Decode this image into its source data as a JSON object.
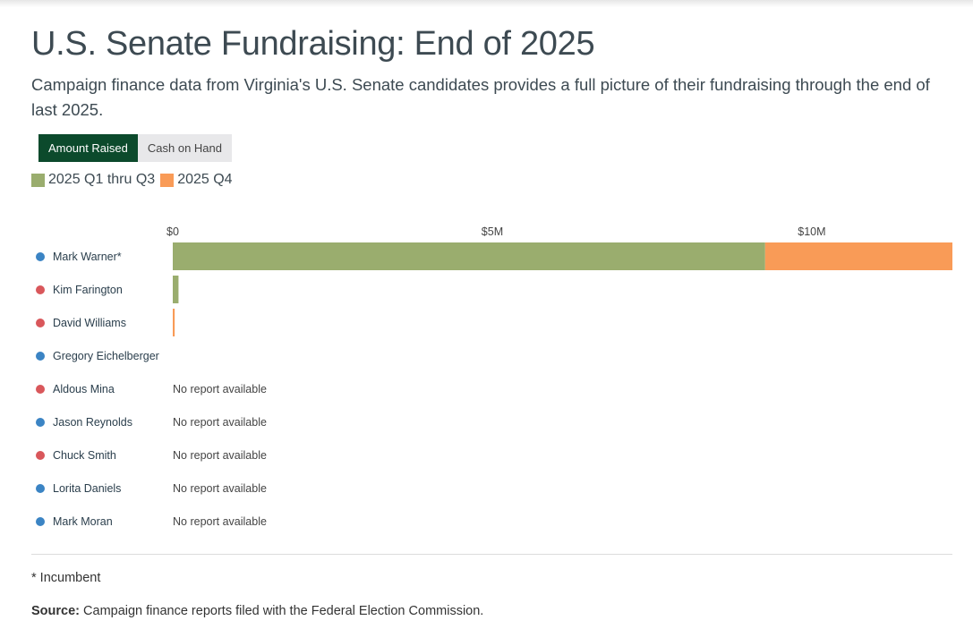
{
  "title": "U.S. Senate Fundraising: End of 2025",
  "subtitle": "Campaign finance data from Virginia's U.S. Senate candidates provides a full picture of their fundraising through the end of last 2025.",
  "toggle": {
    "active_label": "Amount Raised",
    "inactive_label": "Cash on Hand"
  },
  "legend": [
    {
      "label": "2025 Q1 thru Q3",
      "color": "#9aad6e"
    },
    {
      "label": "2025 Q4",
      "color": "#f99b57"
    }
  ],
  "party_colors": {
    "D": "#3b84c4",
    "R": "#d9575b"
  },
  "chart_data": {
    "type": "bar",
    "orientation": "horizontal",
    "stacked": true,
    "categories": [
      "Mark Warner*",
      "Kim Farington",
      "David Williams",
      "Gregory Eichelberger",
      "Aldous Mina",
      "Jason Reynolds",
      "Chuck Smith",
      "Lorita Daniels",
      "Mark Moran"
    ],
    "party": [
      "D",
      "R",
      "R",
      "D",
      "R",
      "D",
      "R",
      "D",
      "D"
    ],
    "series": [
      {
        "name": "2025 Q1 thru Q3",
        "values": [
          9270000,
          90000,
          0,
          0,
          null,
          null,
          null,
          null,
          null
        ]
      },
      {
        "name": "2025 Q4",
        "values": [
          2930000,
          0,
          30000,
          0,
          null,
          null,
          null,
          null,
          null
        ]
      }
    ],
    "no_report_label": "No report available",
    "x_ticks": [
      {
        "value": 0,
        "label": "$0"
      },
      {
        "value": 5000000,
        "label": "$5M"
      },
      {
        "value": 10000000,
        "label": "$10M"
      }
    ],
    "xlim": [
      0,
      12200000
    ]
  },
  "footnote": "* Incumbent",
  "source": {
    "label": "Source:",
    "text": " Campaign finance reports filed with the Federal Election Commission."
  }
}
